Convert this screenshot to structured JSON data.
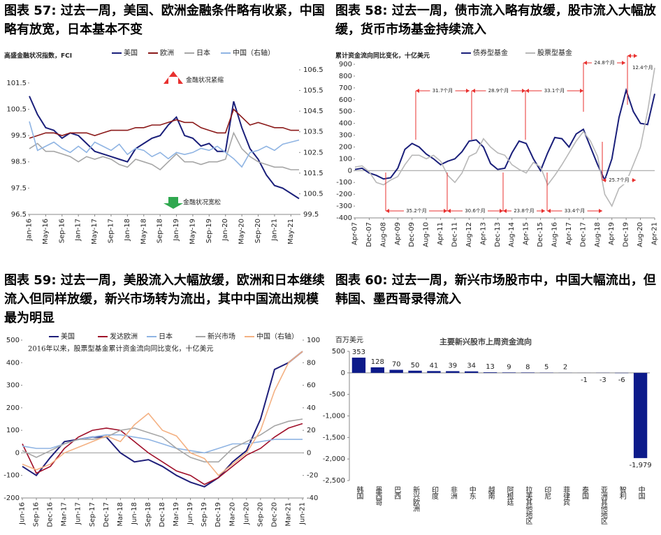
{
  "chart_data": [
    {
      "type": "line",
      "heading": "图表 57: 过去一周，美国、欧洲金融条件略有收紧，中国略有放宽，日本基本不变",
      "y_label": "高盛金融状况指数，FCI",
      "categories": [
        "Jan-16",
        null,
        "May-16",
        null,
        "Sep-16",
        null,
        "Jan-17",
        null,
        "May-17",
        null,
        "Sep-17",
        null,
        "Jan-18",
        null,
        "May-18",
        null,
        "Sep-18",
        null,
        "Jan-19",
        null,
        "May-19",
        null,
        "Sep-19",
        null,
        "Jan-20",
        null,
        "May-20",
        null,
        "Sep-20",
        null,
        "Jan-21",
        null,
        "May-21",
        null
      ],
      "series": [
        {
          "name": "美国",
          "color": "#1a1f7a",
          "values": [
            101.0,
            100.3,
            99.8,
            99.7,
            99.4,
            99.6,
            99.5,
            99.2,
            98.9,
            98.8,
            98.7,
            98.6,
            98.5,
            99.0,
            99.2,
            99.4,
            99.5,
            99.9,
            100.2,
            99.5,
            99.4,
            99.1,
            99.2,
            98.9,
            98.9,
            100.8,
            99.8,
            99.0,
            98.6,
            98.0,
            97.6,
            97.5,
            97.3,
            97.1
          ]
        },
        {
          "name": "欧洲",
          "color": "#8b1a1a",
          "values": [
            99.4,
            99.5,
            99.6,
            99.6,
            99.5,
            99.6,
            99.6,
            99.6,
            99.5,
            99.6,
            99.7,
            99.7,
            99.7,
            99.8,
            99.8,
            99.9,
            99.9,
            100.0,
            100.1,
            100.0,
            100.0,
            99.8,
            99.7,
            99.6,
            99.6,
            100.5,
            100.2,
            99.9,
            100.0,
            99.9,
            99.8,
            99.8,
            99.7,
            99.7
          ]
        },
        {
          "name": "日本",
          "color": "#a6a6a6",
          "values": [
            99.0,
            99.2,
            98.9,
            98.9,
            98.8,
            98.7,
            98.5,
            98.7,
            98.6,
            98.7,
            98.6,
            98.4,
            98.3,
            98.6,
            98.5,
            98.4,
            98.2,
            98.5,
            98.8,
            98.5,
            98.5,
            98.4,
            98.5,
            98.5,
            98.6,
            99.6,
            99.0,
            98.7,
            98.5,
            98.4,
            98.3,
            98.3,
            98.2,
            98.2
          ]
        },
        {
          "name": "中国（右轴）",
          "color": "#8fb4e3",
          "axis": "y2",
          "values": [
            104.0,
            102.6,
            102.8,
            103.0,
            102.7,
            102.5,
            102.8,
            102.5,
            103.0,
            102.8,
            102.6,
            102.9,
            102.4,
            102.7,
            102.6,
            102.3,
            102.5,
            102.2,
            102.5,
            102.4,
            102.5,
            102.7,
            102.6,
            102.8,
            102.5,
            102.2,
            101.8,
            102.5,
            102.6,
            102.8,
            102.6,
            102.9,
            103.0,
            103.1
          ]
        }
      ],
      "ylim": [
        96.5,
        102
      ],
      "yticks": [
        96.5,
        97.5,
        98.5,
        99.5,
        100.5,
        101.5
      ],
      "y2lim": [
        99.5,
        106.5
      ],
      "y2ticks": [
        99.5,
        100.5,
        101.5,
        102.5,
        103.5,
        104.5,
        105.5,
        106.5
      ],
      "annotations": [
        "金融状况紧缩",
        "金融状况宽松"
      ]
    },
    {
      "type": "line",
      "heading": "图表 58: 过去一周，债市流入略有放缓，股市流入大幅放缓，货币市场基金持续流入",
      "y_label": "累计资金流向同比变化，十亿美元",
      "categories": [
        "Apr-07",
        null,
        "Dec-07",
        null,
        "Aug-08",
        null,
        "Apr-09",
        null,
        "Dec-09",
        null,
        "Aug-10",
        null,
        "Apr-11",
        null,
        "Dec-11",
        null,
        "Aug-12",
        null,
        "Apr-13",
        null,
        "Dec-13",
        null,
        "Aug-14",
        null,
        "Apr-15",
        null,
        "Dec-15",
        null,
        "Aug-16",
        null,
        "Apr-17",
        null,
        "Dec-17",
        null,
        "Aug-18",
        null,
        "Apr-19",
        null,
        "Dec-19",
        null,
        "Aug-20",
        null,
        "Apr-21"
      ],
      "series": [
        {
          "name": "债券型基金",
          "color": "#1a1f7a",
          "values": [
            10,
            20,
            -20,
            -40,
            -70,
            -60,
            20,
            180,
            230,
            200,
            140,
            100,
            50,
            80,
            100,
            160,
            250,
            260,
            200,
            60,
            10,
            20,
            150,
            250,
            230,
            100,
            0,
            150,
            280,
            270,
            200,
            310,
            350,
            200,
            50,
            -80,
            100,
            450,
            680,
            500,
            400,
            390,
            650
          ]
        },
        {
          "name": "股票型基金",
          "color": "#b8b8b8",
          "values": [
            30,
            40,
            -10,
            -100,
            -120,
            -80,
            -50,
            50,
            130,
            130,
            100,
            130,
            80,
            -40,
            -100,
            -20,
            120,
            150,
            270,
            200,
            150,
            130,
            50,
            10,
            -20,
            70,
            30,
            -120,
            -40,
            50,
            150,
            250,
            330,
            250,
            120,
            -200,
            -300,
            -150,
            -100,
            50,
            200,
            500,
            870
          ]
        }
      ],
      "ylim": [
        -400,
        900
      ],
      "yticks": [
        -400,
        -300,
        -200,
        -100,
        0,
        100,
        200,
        300,
        400,
        500,
        600,
        700,
        800,
        900
      ],
      "annotations": [
        "31.7个月",
        "28.9个月",
        "33.1个月",
        "24.8个月",
        "12.4个月",
        "35.2个月",
        "30.6个月",
        "23.8个月",
        "33.4个月",
        "25.7个月"
      ]
    },
    {
      "type": "line",
      "heading": "图表 59: 过去一周，美股流入大幅放缓，欧洲和日本继续流入但同样放缓，新兴市场转为流出，其中中国流出规模最为明显",
      "note": "2016年以来，股票型基金累计资金流向同比变化，十亿美元",
      "categories": [
        "Jun-16",
        "Sep-16",
        "Dec-16",
        "Mar-17",
        "Jun-17",
        "Sep-17",
        "Dec-17",
        "Mar-18",
        "Jun-18",
        "Sep-18",
        "Dec-18",
        "Mar-19",
        "Jun-19",
        "Sep-19",
        "Dec-19",
        "Mar-20",
        "Jun-20",
        "Sep-20",
        "Dec-20",
        "Mar-21",
        "Jun-21"
      ],
      "series": [
        {
          "name": "美国",
          "color": "#1f1f7a",
          "values": [
            -60,
            -100,
            -20,
            50,
            60,
            70,
            70,
            0,
            -40,
            -30,
            -60,
            -100,
            -130,
            -150,
            -110,
            -40,
            10,
            150,
            370,
            400,
            450
          ]
        },
        {
          "name": "发达欧洲",
          "color": "#a0102a",
          "values": [
            40,
            -90,
            -60,
            20,
            70,
            100,
            110,
            100,
            50,
            0,
            -40,
            -80,
            -100,
            -140,
            -110,
            -60,
            -10,
            20,
            70,
            110,
            130
          ]
        },
        {
          "name": "日本",
          "color": "#8fb4e3",
          "values": [
            30,
            20,
            20,
            40,
            60,
            70,
            80,
            80,
            70,
            60,
            40,
            20,
            10,
            0,
            20,
            40,
            40,
            50,
            60,
            60,
            60
          ]
        },
        {
          "name": "新兴市场",
          "color": "#a6a6a6",
          "values": [
            10,
            -20,
            10,
            40,
            60,
            60,
            70,
            100,
            110,
            90,
            70,
            20,
            -20,
            -40,
            -40,
            20,
            50,
            80,
            120,
            140,
            150
          ]
        },
        {
          "name": "中国（右轴）",
          "color": "#f4b183",
          "axis": "y2",
          "values": [
            -10,
            -15,
            -10,
            0,
            5,
            10,
            15,
            10,
            25,
            35,
            20,
            15,
            0,
            -5,
            -20,
            -10,
            0,
            20,
            55,
            80,
            90
          ]
        }
      ],
      "ylim": [
        -200,
        500
      ],
      "yticks": [
        -200,
        -100,
        0,
        100,
        200,
        300,
        400,
        500
      ],
      "y2lim": [
        -40,
        100
      ],
      "y2ticks": [
        -40,
        -20,
        0,
        20,
        40,
        60,
        80,
        100
      ]
    },
    {
      "type": "bar",
      "heading": "图表 60: 过去一周，新兴市场股市中，中国大幅流出，但韩国、墨西哥录得流入",
      "title": "主要新兴股市上周资金流向",
      "y_label": "百万美元",
      "categories": [
        "韩国",
        "墨西哥",
        "巴西",
        "新兴欧洲",
        "印度",
        "非洲",
        "中东",
        "越南",
        "阿根廷",
        "拉美其他地区",
        "印尼",
        "菲律宾",
        "泰国",
        "亚洲其他地区",
        "智利",
        "中国"
      ],
      "values": [
        353,
        128,
        70,
        50,
        41,
        39,
        34,
        13,
        9,
        8,
        5,
        2,
        -1,
        -3,
        -6,
        -1979
      ],
      "value_labels": [
        "353",
        "128",
        "70",
        "50",
        "41",
        "39",
        "34",
        "13",
        "9",
        "8",
        "5",
        "2",
        "-1",
        "-3",
        "-6",
        "-1,979"
      ],
      "color": "#0c1a8a",
      "negative_label_color": "#e8312f",
      "ylim": [
        -2500,
        500
      ],
      "yticks": [
        {
          "value": -2500,
          "label": "-2,500"
        },
        {
          "value": -2000,
          "label": "-2,000"
        },
        {
          "value": -1500,
          "label": "-1,500"
        },
        {
          "value": -1000,
          "label": "-1,000"
        },
        -500,
        0,
        500
      ]
    }
  ]
}
